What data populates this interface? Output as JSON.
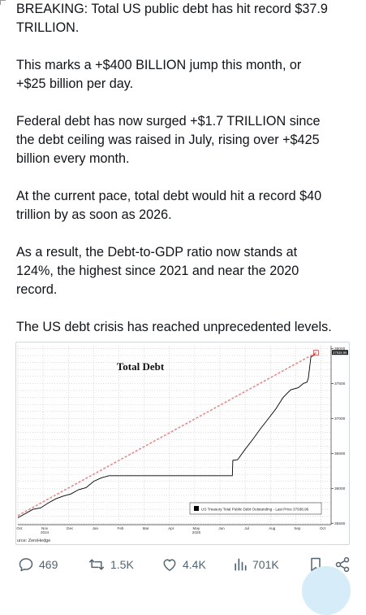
{
  "tweet": {
    "paragraphs": [
      "BREAKING: Total US public debt has hit record $37.9\nTRILLION.",
      "This marks a +$400 BILLION jump this month, or\n+$25 billion per day.",
      "Federal debt has now surged +$1.7 TRILLION since\nthe debt ceiling was raised in July, rising over +$425\nbillion every month.",
      "At the current pace, total debt would hit a record $40\ntrillion by as soon as 2026.",
      "As a result, the Debt-to-GDP ratio now stands at\n124%, the highest since 2021 and near the 2020\nrecord.",
      "The US debt crisis has reached unprecedented levels."
    ]
  },
  "chart_data": {
    "type": "line",
    "title": "Total Debt",
    "legend": "US Treasury Total Public Debt Outstanding - Last Price 37938.96",
    "last_price_label": "37938.96",
    "source": "urce: ZeroHedge",
    "x_tick_labels": [
      "Oct",
      "Nov",
      "Dec",
      "Jan",
      "Feb",
      "Mar",
      "Apr",
      "May",
      "Jun",
      "Jul",
      "Aug",
      "Sep",
      "Oct"
    ],
    "x_year_labels": {
      "Nov": "2024",
      "May": "2025"
    },
    "y_tick_labels": [
      "38000",
      "37500",
      "37000",
      "36500",
      "36000",
      "35500"
    ],
    "y_ticks": [
      38000,
      37500,
      37000,
      36500,
      36000,
      35500
    ],
    "ylim": [
      35480,
      38040
    ],
    "xlim": [
      0,
      12.4
    ],
    "grid": true,
    "legend_position": "bottom-right",
    "series": [
      {
        "name": "US Treasury Total Public Debt Outstanding",
        "color": "#000000",
        "x": [
          0,
          0.3,
          0.6,
          0.9,
          1.2,
          1.5,
          1.8,
          2.1,
          2.4,
          2.7,
          3.0,
          3.3,
          3.6,
          3.9,
          4.2,
          5.0,
          6.0,
          7.0,
          8.0,
          8.49,
          8.51,
          8.7,
          9.0,
          9.3,
          9.6,
          9.9,
          10.2,
          10.5,
          10.8,
          11.1,
          11.3,
          11.45,
          11.5,
          11.6,
          11.7,
          11.8
        ],
        "y": [
          35580,
          35640,
          35700,
          35720,
          35790,
          35850,
          35890,
          35920,
          35980,
          36010,
          36100,
          36150,
          36180,
          36180,
          36180,
          36180,
          36180,
          36180,
          36180,
          36180,
          36400,
          36410,
          36560,
          36700,
          36850,
          36990,
          37130,
          37300,
          37410,
          37440,
          37500,
          37520,
          37580,
          37880,
          37900,
          37939
        ]
      },
      {
        "name": "trend",
        "color": "#e58a8a",
        "x": [
          0,
          11.8
        ],
        "y": [
          35610,
          37939
        ]
      }
    ]
  },
  "actions": {
    "replies": "469",
    "reposts": "1.5K",
    "likes": "4.4K",
    "views": "701K"
  },
  "colors": {
    "icon_gray": "#536471",
    "text": "#0f1419",
    "trend_red": "#e58a8a",
    "marker_red": "#d23c3c"
  }
}
